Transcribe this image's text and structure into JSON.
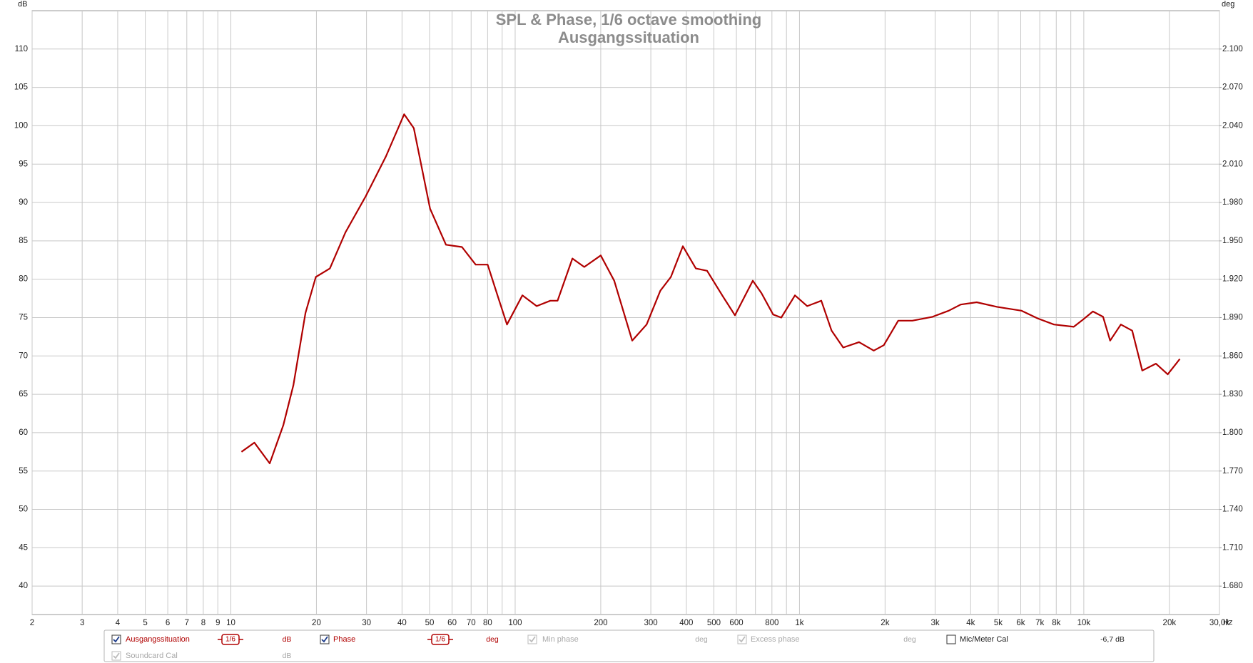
{
  "chart_data": {
    "type": "line",
    "title": "SPL & Phase, 1/6 octave smoothing",
    "subtitle": "Ausgangssituation",
    "y_label": "dB",
    "y2_label": "deg",
    "x_label": "Hz",
    "xscale": "log",
    "grid": true,
    "xlim": [
      2,
      30000
    ],
    "ylim": [
      36.3,
      115
    ],
    "y2lim": [
      1.6578,
      2.13
    ],
    "xticks": [
      2,
      3,
      4,
      5,
      6,
      7,
      8,
      9,
      10,
      20,
      30,
      40,
      50,
      60,
      70,
      80,
      100,
      200,
      300,
      400,
      500,
      600,
      800,
      {
        "value": 1000,
        "label": "1k"
      },
      {
        "value": 2000,
        "label": "2k"
      },
      {
        "value": 3000,
        "label": "3k"
      },
      {
        "value": 4000,
        "label": "4k"
      },
      {
        "value": 5000,
        "label": "5k"
      },
      {
        "value": 6000,
        "label": "6k"
      },
      {
        "value": 7000,
        "label": "7k"
      },
      {
        "value": 8000,
        "label": "8k"
      },
      {
        "value": 10000,
        "label": "10k"
      },
      {
        "value": 20000,
        "label": "20k"
      },
      {
        "value": 30000,
        "label": "30,0k"
      }
    ],
    "xminor_ticks": [
      90,
      700,
      900,
      9000
    ],
    "yticks": [
      40,
      45,
      50,
      55,
      60,
      65,
      70,
      75,
      80,
      85,
      90,
      95,
      100,
      105,
      110
    ],
    "y2ticks": [
      {
        "value": 1.68,
        "label": "1.680"
      },
      {
        "value": 1.71,
        "label": "1.710"
      },
      {
        "value": 1.74,
        "label": "1.740"
      },
      {
        "value": 1.77,
        "label": "1.770"
      },
      {
        "value": 1.8,
        "label": "1.800"
      },
      {
        "value": 1.83,
        "label": "1.830"
      },
      {
        "value": 1.86,
        "label": "1.860"
      },
      {
        "value": 1.89,
        "label": "1.890"
      },
      {
        "value": 1.92,
        "label": "1.920"
      },
      {
        "value": 1.95,
        "label": "1.950"
      },
      {
        "value": 1.98,
        "label": "1.980"
      },
      {
        "value": 2.01,
        "label": "2.010"
      },
      {
        "value": 2.04,
        "label": "2.040"
      },
      {
        "value": 2.07,
        "label": "2.070"
      },
      {
        "value": 2.1,
        "label": "2.100"
      }
    ],
    "x": [
      10.9,
      12.1,
      13.7,
      15.3,
      16.6,
      18.3,
      19.9,
      22.3,
      25.3,
      29.8,
      35.1,
      40.7,
      44,
      50.2,
      57.1,
      65,
      72.6,
      80,
      87,
      93.6,
      106,
      119,
      133,
      141,
      159,
      175,
      200,
      223,
      258,
      290,
      324,
      353,
      389,
      432,
      473,
      539,
      593,
      685,
      735,
      808,
      863,
      964,
      1065,
      1193,
      1297,
      1425,
      1620,
      1825,
      1980,
      2225,
      2495,
      2935,
      3350,
      3690,
      4200,
      4950,
      6030,
      6880,
      7850,
      9220,
      9830,
      10760,
      11690,
      12380,
      13500,
      14800,
      16050,
      17930,
      19730,
      21760
    ],
    "series": [
      {
        "name": "Ausgangssituation",
        "color": "#b00000",
        "values": [
          57.5,
          58.7,
          56,
          61,
          66.2,
          75.6,
          80.3,
          81.4,
          86.1,
          90.8,
          96,
          101.5,
          99.7,
          89.2,
          84.5,
          84.2,
          81.9,
          81.9,
          77.7,
          74.1,
          77.9,
          76.5,
          77.2,
          77.2,
          82.7,
          81.6,
          83.1,
          79.8,
          72,
          74.1,
          78.5,
          80.3,
          84.3,
          81.4,
          81.1,
          77.7,
          75.3,
          79.8,
          78.2,
          75.4,
          75,
          77.9,
          76.5,
          77.2,
          73.3,
          71.1,
          71.8,
          70.7,
          71.4,
          74.6,
          74.6,
          75.1,
          75.9,
          76.7,
          77,
          76.4,
          75.9,
          74.9,
          74.1,
          73.8,
          74.6,
          75.8,
          75.1,
          72,
          74.1,
          73.3,
          68.1,
          69,
          67.6,
          69.6
        ]
      }
    ]
  },
  "controls": [
    {
      "checked": true,
      "enabled": true,
      "smoothing": "1/6",
      "unit": "dB"
    },
    {
      "label": "Phase",
      "checked": true,
      "enabled": true,
      "smoothing": "1/6",
      "unit": "deg"
    },
    {
      "label": "Min phase",
      "checked": true,
      "enabled": false,
      "unit": "deg"
    },
    {
      "label": "Excess phase",
      "checked": true,
      "enabled": false,
      "unit": "deg"
    },
    {
      "label": "Mic/Meter Cal",
      "checked": false,
      "enabled": true,
      "value": "-6,7 dB"
    },
    {
      "label": "Soundcard Cal",
      "checked": true,
      "enabled": false,
      "unit": "dB"
    }
  ]
}
